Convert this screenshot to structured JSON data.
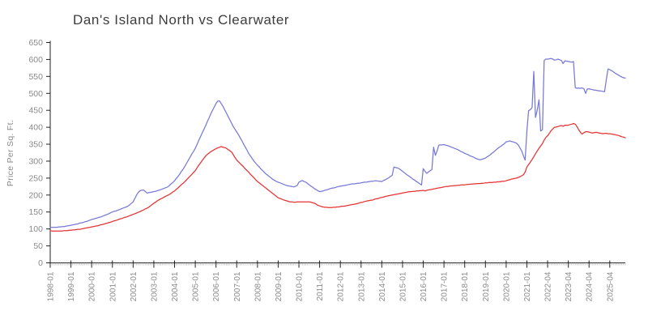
{
  "title": "Dan's Island North vs Clearwater",
  "colors": {
    "axis": "#222222",
    "tick_label": "#8a8a8a",
    "minor_tick": "#aaaaaa",
    "title": "#3d3d3d",
    "series1": "#7878d8",
    "series2": "#e63232"
  },
  "chart_data": {
    "type": "line",
    "title": "Dan's Island North vs Clearwater",
    "xlabel": "",
    "ylabel": "Price Per Sq. Ft.",
    "ylim": [
      0,
      650
    ],
    "y_ticks": [
      0,
      50,
      100,
      150,
      200,
      250,
      300,
      350,
      400,
      450,
      500,
      550,
      600,
      650
    ],
    "x_tick_every": 12,
    "x_tick_labels": [
      "1998-01",
      "1999-01",
      "2000-01",
      "2001-01",
      "2002-01",
      "2003-01",
      "2004-01",
      "2005-01",
      "2006-01",
      "2007-01",
      "2008-01",
      "2009-01",
      "2010-01",
      "2011-01",
      "2012-01",
      "2013-01",
      "2014-01",
      "2015-01",
      "2016-01",
      "2017-01",
      "2018-01",
      "2019-01",
      "2020-01",
      "2021-01",
      "2022-04",
      "2023-04",
      "2024-04",
      "2025-04"
    ],
    "grid": false,
    "legend_position": "none",
    "series": [
      {
        "name": "Dan's Island North",
        "color": "#7878d8",
        "values": [
          105,
          105,
          105,
          105,
          105,
          106,
          106,
          107,
          107,
          108,
          109,
          110,
          111,
          112,
          113,
          114,
          115,
          117,
          118,
          119,
          121,
          122,
          124,
          126,
          128,
          129,
          131,
          132,
          134,
          135,
          137,
          139,
          141,
          143,
          145,
          148,
          150,
          152,
          153,
          155,
          157,
          159,
          161,
          163,
          165,
          167,
          171,
          176,
          180,
          190,
          200,
          208,
          213,
          214,
          215,
          211,
          206,
          207,
          208,
          209,
          210,
          211,
          213,
          214,
          216,
          218,
          220,
          222,
          224,
          228,
          233,
          237,
          242,
          249,
          255,
          262,
          270,
          277,
          285,
          294,
          303,
          312,
          321,
          329,
          338,
          349,
          361,
          372,
          383,
          394,
          405,
          417,
          428,
          440,
          450,
          460,
          470,
          477,
          478,
          470,
          462,
          452,
          442,
          432,
          422,
          412,
          402,
          394,
          386,
          378,
          369,
          360,
          350,
          341,
          332,
          322,
          315,
          307,
          300,
          294,
          288,
          283,
          277,
          272,
          267,
          262,
          258,
          254,
          250,
          246,
          243,
          240,
          238,
          236,
          234,
          232,
          230,
          228,
          227,
          226,
          225,
          224,
          226,
          228,
          238,
          241,
          243,
          240,
          238,
          234,
          230,
          226,
          223,
          219,
          216,
          213,
          210,
          211,
          212,
          214,
          215,
          217,
          219,
          220,
          221,
          222,
          224,
          225,
          226,
          227,
          228,
          229,
          230,
          231,
          232,
          233,
          233,
          234,
          235,
          235,
          236,
          237,
          238,
          238,
          239,
          240,
          241,
          241,
          242,
          242,
          241,
          241,
          240,
          243,
          245,
          248,
          251,
          255,
          258,
          283,
          281,
          280,
          278,
          274,
          270,
          266,
          262,
          258,
          255,
          251,
          247,
          244,
          240,
          237,
          233,
          230,
          278,
          270,
          264,
          268,
          272,
          275,
          341,
          317,
          330,
          347,
          348,
          348,
          349,
          347,
          346,
          344,
          342,
          340,
          338,
          336,
          334,
          331,
          328,
          326,
          323,
          321,
          319,
          316,
          314,
          312,
          309,
          307,
          305,
          304,
          306,
          307,
          309,
          313,
          316,
          320,
          324,
          328,
          333,
          337,
          341,
          344,
          348,
          352,
          357,
          358,
          360,
          358,
          357,
          355,
          353,
          348,
          339,
          330,
          316,
          303,
          390,
          449,
          452,
          458,
          565,
          429,
          451,
          481,
          389,
          393,
          597,
          601,
          601,
          602,
          603,
          601,
          598,
          599,
          601,
          599,
          597,
          588,
          596,
          595,
          594,
          593,
          592,
          594,
          517,
          515,
          516,
          515,
          516,
          514,
          500,
          513,
          513,
          512,
          511,
          510,
          509,
          508,
          507,
          507,
          506,
          505,
          540,
          572,
          570,
          567,
          564,
          560,
          557,
          554,
          551,
          548,
          546,
          545
        ]
      },
      {
        "name": "Clearwater",
        "color": "#e63232",
        "values": [
          95,
          94,
          94,
          94,
          94,
          94,
          94,
          94,
          95,
          95,
          95,
          96,
          96,
          97,
          97,
          98,
          99,
          99,
          100,
          101,
          102,
          103,
          104,
          105,
          106,
          107,
          108,
          109,
          110,
          112,
          113,
          114,
          116,
          117,
          119,
          120,
          122,
          124,
          125,
          127,
          129,
          130,
          132,
          134,
          135,
          137,
          139,
          141,
          143,
          145,
          147,
          149,
          151,
          154,
          156,
          159,
          161,
          164,
          168,
          172,
          176,
          179,
          183,
          186,
          189,
          191,
          194,
          197,
          199,
          202,
          205,
          209,
          212,
          217,
          221,
          226,
          231,
          235,
          240,
          245,
          251,
          256,
          261,
          267,
          272,
          280,
          288,
          295,
          302,
          309,
          315,
          320,
          324,
          328,
          331,
          334,
          337,
          339,
          341,
          343,
          341,
          340,
          338,
          334,
          331,
          327,
          319,
          311,
          303,
          298,
          293,
          288,
          283,
          277,
          272,
          267,
          261,
          256,
          251,
          245,
          240,
          236,
          232,
          228,
          224,
          220,
          216,
          212,
          208,
          204,
          200,
          196,
          192,
          190,
          188,
          186,
          184,
          183,
          181,
          180,
          180,
          179,
          179,
          180,
          180,
          180,
          180,
          180,
          180,
          180,
          180,
          179,
          177,
          176,
          173,
          170,
          168,
          166,
          165,
          164,
          164,
          163,
          163,
          163,
          164,
          164,
          165,
          165,
          166,
          167,
          167,
          168,
          169,
          170,
          171,
          172,
          173,
          174,
          175,
          177,
          178,
          179,
          181,
          182,
          183,
          184,
          185,
          186,
          188,
          189,
          190,
          192,
          193,
          194,
          196,
          197,
          198,
          199,
          200,
          201,
          202,
          203,
          204,
          205,
          206,
          207,
          208,
          209,
          210,
          210,
          211,
          211,
          212,
          212,
          213,
          213,
          214,
          212,
          214,
          215,
          216,
          217,
          218,
          219,
          220,
          221,
          222,
          223,
          224,
          225,
          225,
          226,
          227,
          227,
          228,
          228,
          229,
          229,
          230,
          230,
          230,
          231,
          231,
          232,
          232,
          233,
          233,
          234,
          234,
          234,
          235,
          235,
          236,
          236,
          237,
          237,
          237,
          238,
          238,
          239,
          239,
          240,
          241,
          241,
          242,
          244,
          245,
          247,
          248,
          249,
          250,
          252,
          254,
          257,
          260,
          268,
          283,
          290,
          297,
          305,
          313,
          322,
          330,
          338,
          345,
          352,
          362,
          370,
          375,
          382,
          390,
          395,
          400,
          401,
          402,
          404,
          405,
          403,
          406,
          406,
          406,
          408,
          409,
          411,
          409,
          402,
          393,
          385,
          380,
          384,
          387,
          387,
          386,
          384,
          383,
          384,
          385,
          384,
          383,
          382,
          381,
          382,
          382,
          381,
          381,
          380,
          379,
          378,
          377,
          376,
          374,
          372,
          371,
          369
        ]
      }
    ]
  }
}
